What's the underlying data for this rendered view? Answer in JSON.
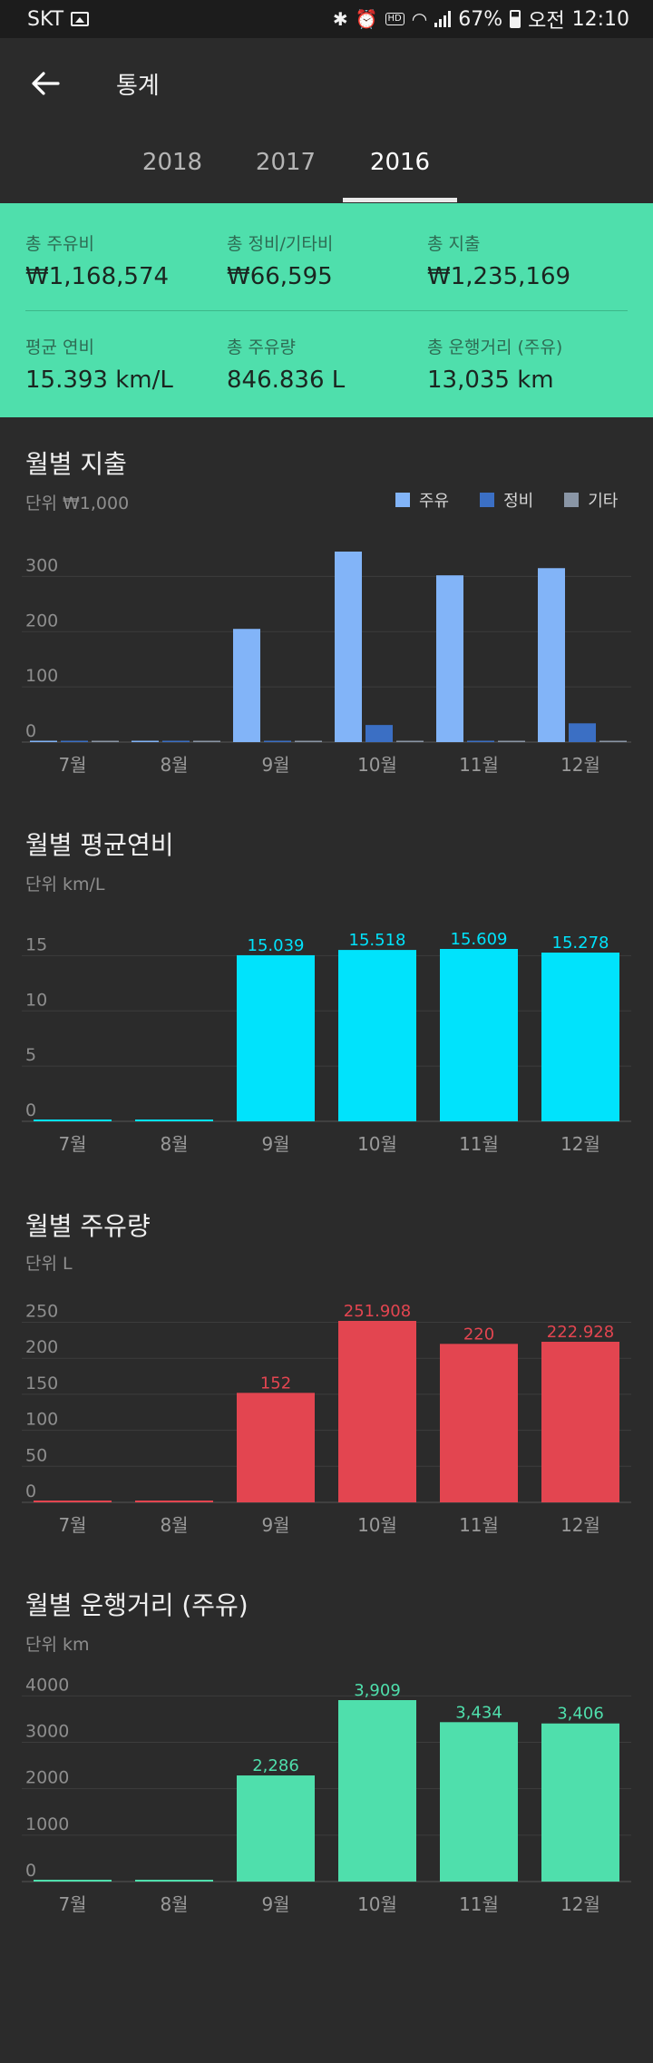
{
  "status_bar": {
    "carrier": "SKT",
    "battery": "67%",
    "ampm": "오전",
    "time": "12:10",
    "hd_label": "HD"
  },
  "app_bar": {
    "title": "통계",
    "back_icon": "arrow-back-icon"
  },
  "tabs": [
    {
      "label": "2018",
      "active": false
    },
    {
      "label": "2017",
      "active": false
    },
    {
      "label": "2016",
      "active": true
    }
  ],
  "summary": {
    "row1": [
      {
        "label": "총 주유비",
        "value": "₩1,168,574"
      },
      {
        "label": "총 정비/기타비",
        "value": "₩66,595"
      },
      {
        "label": "총 지출",
        "value": "₩1,235,169"
      }
    ],
    "row2": [
      {
        "label": "평균 연비",
        "value": "15.393 km/L"
      },
      {
        "label": "총 주유량",
        "value": "846.836 L"
      },
      {
        "label": "총 운행거리 (주유)",
        "value": "13,035 km"
      }
    ]
  },
  "colors": {
    "fuel": "#82b4f8",
    "maintenance": "#3b6fc4",
    "other": "#8a96a6",
    "efficiency": "#00e3fc",
    "volume": "#e34550",
    "distance": "#4fdfac",
    "accent_summary": "#4fdfac"
  },
  "charts": {
    "expense": {
      "title": "월별 지출",
      "unit": "단위 ₩1,000",
      "legend": [
        "주유",
        "정비",
        "기타"
      ]
    },
    "efficiency": {
      "title": "월별 평균연비",
      "unit": "단위 km/L"
    },
    "volume": {
      "title": "월별 주유량",
      "unit": "단위 L"
    },
    "distance": {
      "title": "월별 운행거리 (주유)",
      "unit": "단위 km"
    }
  },
  "chart_data": [
    {
      "type": "bar",
      "title": "월별 지출",
      "categories": [
        "7월",
        "8월",
        "9월",
        "10월",
        "11월",
        "12월"
      ],
      "series": [
        {
          "name": "주유",
          "values": [
            0,
            0,
            205,
            345,
            302,
            315
          ]
        },
        {
          "name": "정비",
          "values": [
            0,
            0,
            0,
            31,
            0,
            34
          ]
        },
        {
          "name": "기타",
          "values": [
            0,
            0,
            0,
            0,
            0,
            0
          ]
        }
      ],
      "ylabel": "단위 ₩1,000",
      "yticks": [
        "0",
        "100",
        "200",
        "300"
      ],
      "ylim": [
        0,
        345
      ],
      "grid": true,
      "legend": "top-right"
    },
    {
      "type": "bar",
      "title": "월별 평균연비",
      "categories": [
        "7월",
        "8월",
        "9월",
        "10월",
        "11월",
        "12월"
      ],
      "values": [
        0,
        0,
        15.039,
        15.518,
        15.609,
        15.278
      ],
      "data_labels": [
        "",
        "",
        "15.039",
        "15.518",
        "15.609",
        "15.278"
      ],
      "ylabel": "단위 km/L",
      "yticks": [
        "0",
        "5",
        "10",
        "15"
      ],
      "ylim": [
        0,
        15.609
      ],
      "grid": true
    },
    {
      "type": "bar",
      "title": "월별 주유량",
      "categories": [
        "7월",
        "8월",
        "9월",
        "10월",
        "11월",
        "12월"
      ],
      "values": [
        0,
        0,
        152,
        251.908,
        220,
        222.928
      ],
      "data_labels": [
        "",
        "",
        "152",
        "251.908",
        "220",
        "222.928"
      ],
      "ylabel": "단위 L",
      "yticks": [
        "0",
        "50",
        "100",
        "150",
        "200",
        "250"
      ],
      "ylim": [
        0,
        251.908
      ],
      "grid": true
    },
    {
      "type": "bar",
      "title": "월별 운행거리 (주유)",
      "categories": [
        "7월",
        "8월",
        "9월",
        "10월",
        "11월",
        "12월"
      ],
      "values": [
        0,
        0,
        2286,
        3909,
        3434,
        3406
      ],
      "data_labels": [
        "",
        "",
        "2,286",
        "3,909",
        "3,434",
        "3,406"
      ],
      "ylabel": "단위 km",
      "yticks": [
        "0",
        "1000",
        "2000",
        "3000",
        "4000"
      ],
      "ylim": [
        0,
        3909
      ],
      "grid": true
    }
  ]
}
